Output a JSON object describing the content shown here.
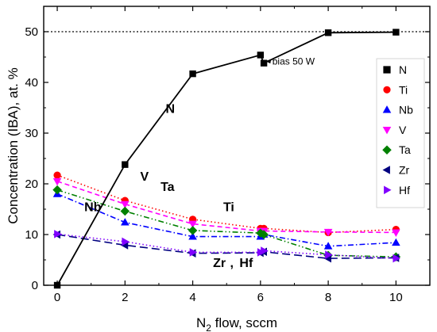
{
  "chart_data": {
    "type": "line",
    "xlabel": {
      "main": "N",
      "sub": "2",
      "rest": " flow, sccm"
    },
    "ylabel": "Concentration (IBA), at. %",
    "xlim": [
      -0.4,
      11
    ],
    "ylim": [
      0,
      55
    ],
    "xticks": [
      0,
      2,
      4,
      6,
      8,
      10
    ],
    "yticks": [
      0,
      10,
      20,
      30,
      40,
      50
    ],
    "grid": false,
    "legend_position": "right",
    "reference_line": {
      "y": 50,
      "style": "dotted"
    },
    "series": [
      {
        "name": "N",
        "color": "#000000",
        "marker": "square",
        "line": "solid",
        "points": [
          [
            0,
            0
          ],
          [
            2,
            23.8
          ],
          [
            4,
            41.7
          ],
          [
            6,
            45.4
          ],
          [
            6.1,
            43.8
          ],
          [
            8,
            49.8
          ],
          [
            10,
            49.9
          ]
        ]
      },
      {
        "name": "Ti",
        "color": "#ff0000",
        "marker": "circle",
        "line": "dot",
        "points": [
          [
            0,
            21.7
          ],
          [
            2,
            16.7
          ],
          [
            4,
            13.0
          ],
          [
            6,
            11.2
          ],
          [
            6.1,
            11.2
          ],
          [
            8,
            10.4
          ],
          [
            10,
            11.0
          ]
        ]
      },
      {
        "name": "Nb",
        "color": "#0000ff",
        "marker": "triangle-up",
        "line": "dashdot",
        "points": [
          [
            0,
            18.0
          ],
          [
            2,
            12.4
          ],
          [
            4,
            9.6
          ],
          [
            6,
            9.6
          ],
          [
            6.1,
            10.0
          ],
          [
            8,
            7.7
          ],
          [
            10,
            8.4
          ]
        ]
      },
      {
        "name": "V",
        "color": "#ff00ff",
        "marker": "triangle-down",
        "line": "dash",
        "points": [
          [
            0,
            20.5
          ],
          [
            2,
            16.0
          ],
          [
            4,
            12.1
          ],
          [
            6,
            10.7
          ],
          [
            6.1,
            10.7
          ],
          [
            8,
            10.5
          ],
          [
            10,
            10.4
          ]
        ]
      },
      {
        "name": "Ta",
        "color": "#008000",
        "marker": "diamond",
        "line": "dashdotdot",
        "points": [
          [
            0,
            18.8
          ],
          [
            2,
            14.6
          ],
          [
            4,
            10.8
          ],
          [
            6,
            10.3
          ],
          [
            6.1,
            10.0
          ],
          [
            8,
            5.9
          ],
          [
            10,
            5.6
          ]
        ]
      },
      {
        "name": "Zr",
        "color": "#000080",
        "marker": "triangle-left",
        "line": "longdash",
        "points": [
          [
            0,
            10.0
          ],
          [
            2,
            7.9
          ],
          [
            4,
            6.3
          ],
          [
            6,
            6.4
          ],
          [
            6.1,
            6.6
          ],
          [
            8,
            5.3
          ],
          [
            10,
            5.4
          ]
        ]
      },
      {
        "name": "Hf",
        "color": "#8000ff",
        "marker": "triangle-right",
        "line": "dot",
        "points": [
          [
            0,
            10.1
          ],
          [
            2,
            8.6
          ],
          [
            4,
            6.5
          ],
          [
            6,
            6.5
          ],
          [
            6.1,
            6.8
          ],
          [
            8,
            6.0
          ],
          [
            10,
            5.3
          ]
        ]
      }
    ],
    "annotations": [
      {
        "text": "N",
        "color": "#000000",
        "x": 3.2,
        "y": 34.0,
        "style": "bold"
      },
      {
        "text": "V",
        "color": "#ff00ff",
        "x": 2.45,
        "y": 20.6,
        "style": "bold"
      },
      {
        "text": "Ta",
        "color": "#008000",
        "x": 3.05,
        "y": 18.6,
        "style": "bold"
      },
      {
        "text": "Nb",
        "color": "#0000ff",
        "x": 0.8,
        "y": 14.6,
        "style": "bold"
      },
      {
        "text": "Ti",
        "color": "#ff0000",
        "x": 4.9,
        "y": 14.6,
        "style": "bold"
      },
      {
        "text": "Zr",
        "color": "#000080",
        "x": 4.6,
        "y": 3.6,
        "style": "bold"
      },
      {
        "text": ",",
        "color": "#000080",
        "x": 5.1,
        "y": 3.6,
        "style": "bold"
      },
      {
        "text": "Hf",
        "color": "#8000ff",
        "x": 5.38,
        "y": 3.6,
        "style": "bold"
      },
      {
        "text": "bias 50 W",
        "color": "#000000",
        "x": 6.35,
        "y": 43.5,
        "style": "small",
        "arrow_to": [
          6.15,
          44.2
        ]
      }
    ]
  }
}
